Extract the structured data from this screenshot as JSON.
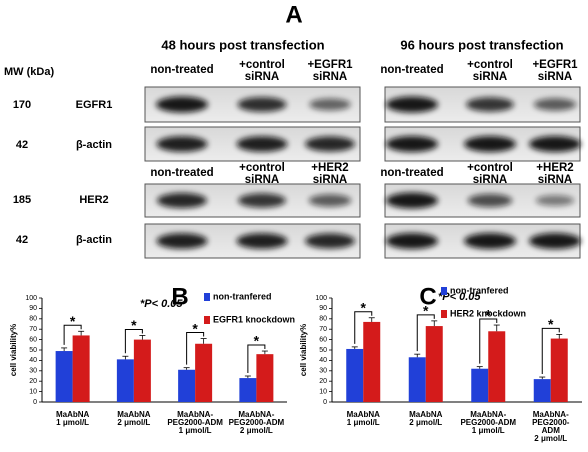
{
  "panel_a": {
    "label": "A",
    "left_title": "48 hours post  transfection",
    "right_title": "96 hours post  transfection",
    "mw_header": "MW (kDa)",
    "rows": [
      {
        "mw": 170,
        "name": "EGFR1"
      },
      {
        "mw": 42,
        "name": "β-actin"
      },
      {
        "mw": 185,
        "name": "HER2"
      },
      {
        "mw": 42,
        "name": "β-actin"
      }
    ],
    "egfr1_columns": [
      "non-treated",
      "+control\nsiRNA",
      "+EGFR1\nsiRNA"
    ],
    "her2_columns": [
      "non-treated",
      "+control\nsiRNA",
      "+HER2\nsiRNA"
    ]
  },
  "chart_data": [
    {
      "type": "bar",
      "label": "B",
      "annotation": "*P< 0.05",
      "y_label": "cell viability%",
      "categories": [
        "MaAbNA\n1 μmol/L",
        "MaAbNA\n2 μmol/L",
        "MaAbNA-\nPEG2000-ADM\n1 μmol/L",
        "MaAbNA-\nPEG2000-ADM\n2 μmol/L"
      ],
      "series": [
        {
          "name": "non-tranfered",
          "color": "#2140d8",
          "values": [
            49,
            41,
            31,
            23
          ],
          "errors": [
            3,
            3,
            2,
            2
          ]
        },
        {
          "name": "EGFR1 knockdown",
          "color": "#d41b1b",
          "values": [
            64,
            60,
            56,
            46
          ],
          "errors": [
            4,
            4,
            5,
            3
          ]
        }
      ],
      "significance": [
        "*",
        "*",
        "*",
        "*"
      ],
      "ylim": [
        0,
        100
      ],
      "yticks": [
        0,
        10,
        20,
        30,
        40,
        50,
        60,
        70,
        80,
        90,
        100
      ]
    },
    {
      "type": "bar",
      "label": "C",
      "annotation": "*P< 0.05",
      "y_label": "cell viability%",
      "categories": [
        "MaAbNA\n1 μmol/L",
        "MaAbNA\n2 μmol/L",
        "MaAbNA-\nPEG2000-ADM\n1 μmol/L",
        "MaAbNA-\nPEG2000-ADM\n2 μmol/L"
      ],
      "series": [
        {
          "name": "non-tranfered",
          "color": "#2140d8",
          "values": [
            51,
            43,
            32,
            22
          ],
          "errors": [
            2,
            3,
            2,
            2
          ]
        },
        {
          "name": "HER2 knockdown",
          "color": "#d41b1b",
          "values": [
            77,
            73,
            68,
            61
          ],
          "errors": [
            4,
            5,
            6,
            4
          ]
        }
      ],
      "significance": [
        "*",
        "*",
        "*",
        "*"
      ],
      "ylim": [
        0,
        100
      ],
      "yticks": [
        0,
        10,
        20,
        30,
        40,
        50,
        60,
        70,
        80,
        90,
        100
      ]
    }
  ]
}
